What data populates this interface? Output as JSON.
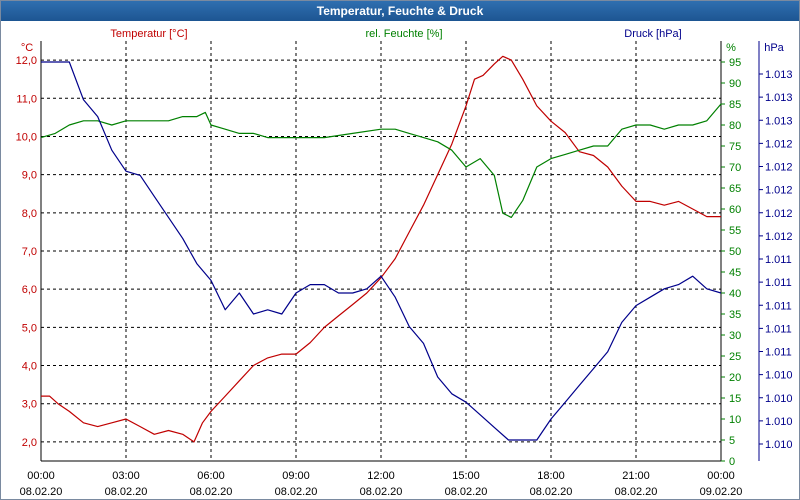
{
  "window": {
    "title": "Temperatur, Feuchte & Druck"
  },
  "colors": {
    "temperature": "#c00000",
    "humidity": "#008000",
    "pressure": "#00008b",
    "grid": "#000000",
    "titlebar": "#1f5a99"
  },
  "chart_data": {
    "type": "line",
    "title": "Temperatur, Feuchte & Druck",
    "grid": true,
    "x_axis": {
      "range_hours": [
        0,
        24
      ],
      "ticks": [
        {
          "time": "00:00",
          "date": "08.02.20"
        },
        {
          "time": "03:00",
          "date": "08.02.20"
        },
        {
          "time": "06:00",
          "date": "08.02.20"
        },
        {
          "time": "09:00",
          "date": "08.02.20"
        },
        {
          "time": "12:00",
          "date": "08.02.20"
        },
        {
          "time": "15:00",
          "date": "08.02.20"
        },
        {
          "time": "18:00",
          "date": "08.02.20"
        },
        {
          "time": "21:00",
          "date": "08.02.20"
        },
        {
          "time": "00:00",
          "date": "09.02.20"
        }
      ]
    },
    "axes": {
      "left": {
        "unit": "°C",
        "range": [
          1.5,
          12.5
        ],
        "ticks": [
          "2,0",
          "3,0",
          "4,0",
          "5,0",
          "6,0",
          "7,0",
          "8,0",
          "9,0",
          "10,0",
          "11,0",
          "12,0"
        ],
        "tick_values": [
          2,
          3,
          4,
          5,
          6,
          7,
          8,
          9,
          10,
          11,
          12
        ]
      },
      "right1": {
        "unit": "%",
        "range": [
          0,
          100
        ],
        "ticks": [
          "0",
          "5",
          "10",
          "15",
          "20",
          "25",
          "30",
          "35",
          "40",
          "45",
          "50",
          "55",
          "60",
          "65",
          "70",
          "75",
          "80",
          "85",
          "90",
          "95"
        ],
        "tick_values": [
          0,
          5,
          10,
          15,
          20,
          25,
          30,
          35,
          40,
          45,
          50,
          55,
          60,
          65,
          70,
          75,
          80,
          85,
          90,
          95
        ]
      },
      "right2": {
        "unit": "hPa",
        "ticks": [
          "1.010",
          "1.010",
          "1.010",
          "1.010",
          "1.011",
          "1.011",
          "1.011",
          "1.011",
          "1.011",
          "1.012",
          "1.012",
          "1.012",
          "1.012",
          "1.012",
          "1.013",
          "1.013",
          "1.013"
        ]
      }
    },
    "series": [
      {
        "name": "Temperatur [°C]",
        "color": "#c00000",
        "axis": "left",
        "x": [
          0,
          0.3,
          0.6,
          1.0,
          1.5,
          2.0,
          2.5,
          3.0,
          3.5,
          4.0,
          4.5,
          5.0,
          5.4,
          5.7,
          6.0,
          6.5,
          7.0,
          7.5,
          8.0,
          8.5,
          9.0,
          9.5,
          10.0,
          10.5,
          11.0,
          11.5,
          12.0,
          12.5,
          13.0,
          13.5,
          14.0,
          14.5,
          15.0,
          15.3,
          15.6,
          16.0,
          16.3,
          16.6,
          17.0,
          17.5,
          18.0,
          18.5,
          19.0,
          19.5,
          20.0,
          20.5,
          21.0,
          21.5,
          22.0,
          22.5,
          23.0,
          23.5,
          24.0
        ],
        "values": [
          3.2,
          3.2,
          3.0,
          2.8,
          2.5,
          2.4,
          2.5,
          2.6,
          2.4,
          2.2,
          2.3,
          2.2,
          2.0,
          2.5,
          2.8,
          3.2,
          3.6,
          4.0,
          4.2,
          4.3,
          4.3,
          4.6,
          5.0,
          5.3,
          5.6,
          5.9,
          6.3,
          6.8,
          7.5,
          8.2,
          9.0,
          9.8,
          10.8,
          11.5,
          11.6,
          11.9,
          12.1,
          12.0,
          11.5,
          10.8,
          10.4,
          10.1,
          9.6,
          9.5,
          9.2,
          8.7,
          8.3,
          8.3,
          8.2,
          8.3,
          8.1,
          7.9,
          7.9
        ]
      },
      {
        "name": "rel. Feuchte [%]",
        "color": "#008000",
        "axis": "right1",
        "x": [
          0,
          0.5,
          1.0,
          1.5,
          2.0,
          2.5,
          3.0,
          3.5,
          4.0,
          4.5,
          5.0,
          5.5,
          5.8,
          6.0,
          6.5,
          7.0,
          7.5,
          8.0,
          8.5,
          9.0,
          10.0,
          11.0,
          12.0,
          12.5,
          13.0,
          13.5,
          14.0,
          14.5,
          15.0,
          15.5,
          16.0,
          16.3,
          16.6,
          17.0,
          17.5,
          18.0,
          18.5,
          19.0,
          19.5,
          20.0,
          20.5,
          21.0,
          21.5,
          22.0,
          22.5,
          23.0,
          23.5,
          24.0
        ],
        "values": [
          77,
          78,
          80,
          81,
          81,
          80,
          81,
          81,
          81,
          81,
          82,
          82,
          83,
          80,
          79,
          78,
          78,
          77,
          77,
          77,
          77,
          78,
          79,
          79,
          78,
          77,
          76,
          74,
          70,
          72,
          68,
          59,
          58,
          62,
          70,
          72,
          73,
          74,
          75,
          75,
          79,
          80,
          80,
          79,
          80,
          80,
          81,
          85
        ]
      },
      {
        "name": "Druck [hPa]",
        "color": "#00008b",
        "axis": "right1",
        "x": [
          0,
          1.0,
          1.5,
          2.0,
          2.5,
          3.0,
          3.5,
          4.0,
          4.5,
          5.0,
          5.5,
          6.0,
          6.5,
          7.0,
          7.5,
          8.0,
          8.5,
          9.0,
          9.5,
          10.0,
          10.5,
          11.0,
          11.5,
          12.0,
          12.5,
          13.0,
          13.5,
          14.0,
          14.5,
          15.0,
          15.5,
          16.0,
          16.5,
          17.0,
          17.5,
          18.0,
          18.5,
          19.0,
          19.5,
          20.0,
          20.5,
          21.0,
          21.5,
          22.0,
          22.5,
          23.0,
          23.5,
          24.0
        ],
        "values": [
          95,
          95,
          86,
          82,
          74,
          69,
          68,
          63,
          58,
          53,
          47,
          43,
          36,
          40,
          35,
          36,
          35,
          40,
          42,
          42,
          40,
          40,
          41,
          44,
          39,
          32,
          28,
          20,
          16,
          14,
          11,
          8,
          5,
          5,
          5,
          10,
          14,
          18,
          22,
          26,
          33,
          37,
          39,
          41,
          42,
          44,
          41,
          40
        ]
      }
    ]
  }
}
